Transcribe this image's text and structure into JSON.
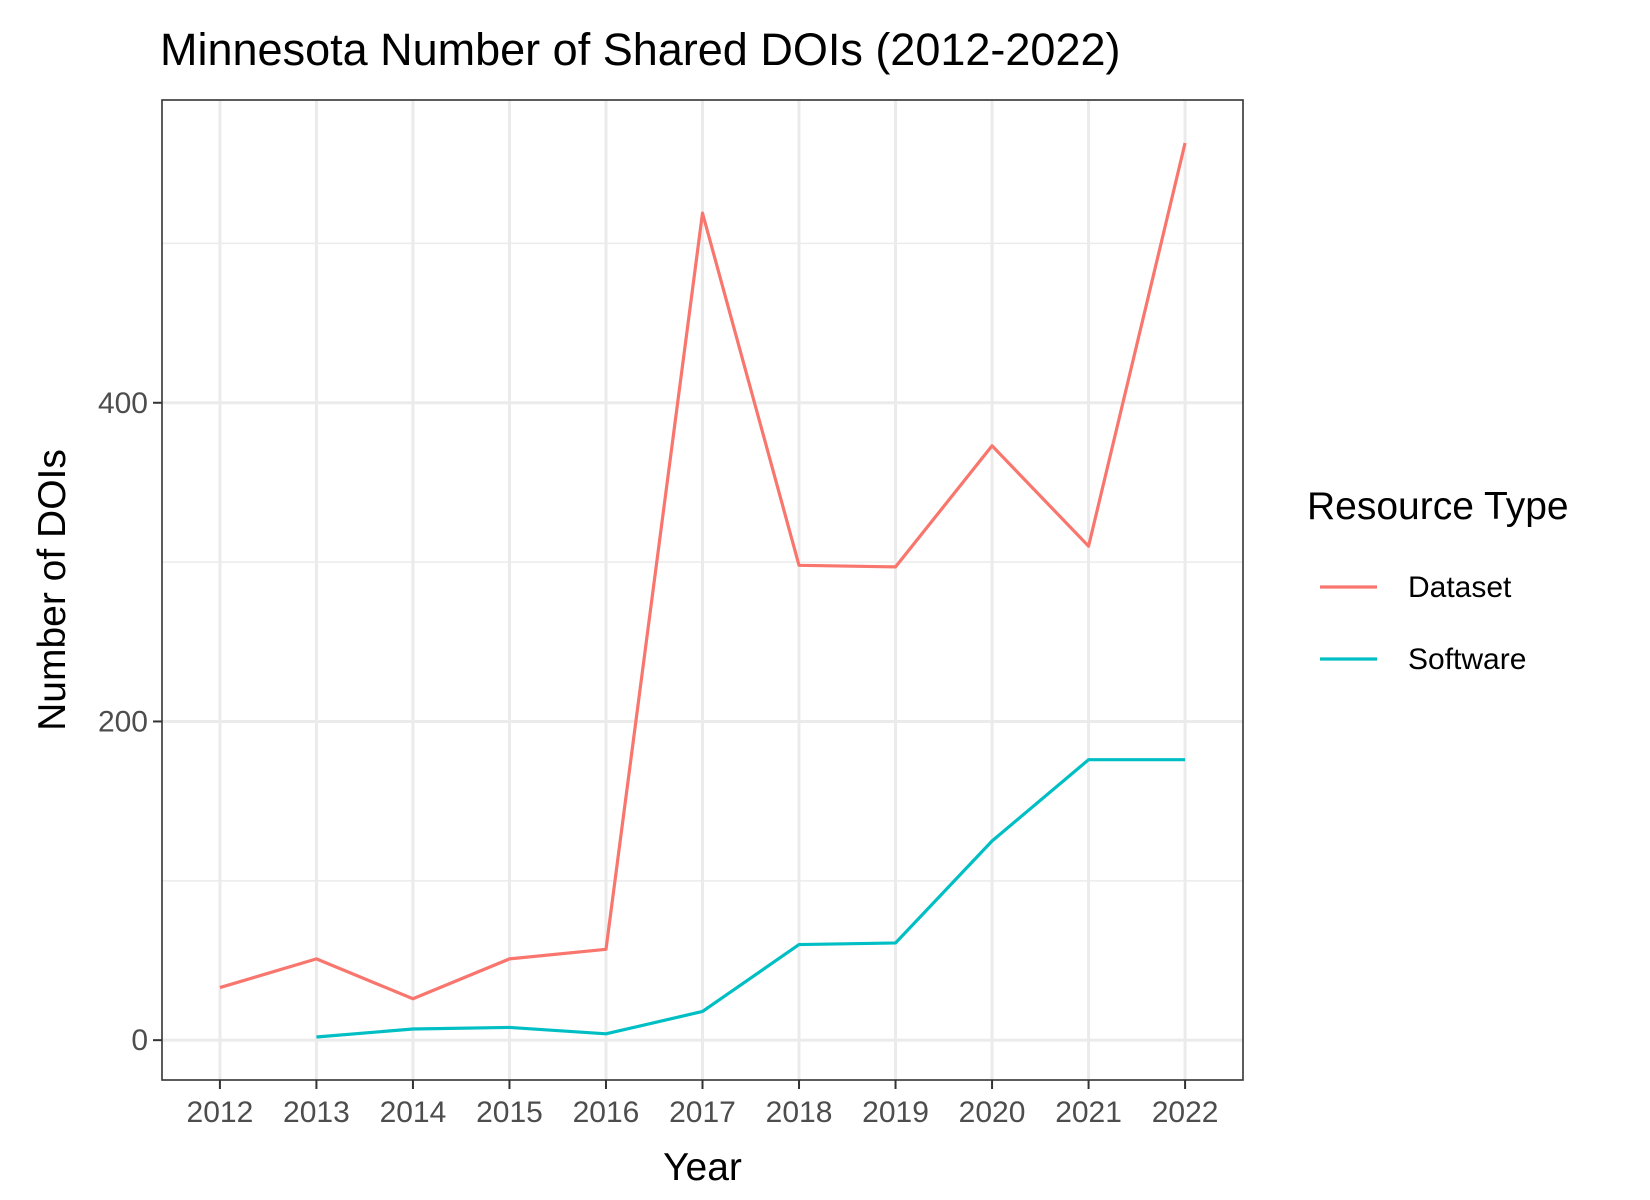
{
  "chart_data": {
    "type": "line",
    "title": "Minnesota Number of Shared DOIs (2012-2022)",
    "xlabel": "Year",
    "ylabel": "Number of DOIs",
    "x": [
      "2012",
      "2013",
      "2014",
      "2015",
      "2016",
      "2017",
      "2018",
      "2019",
      "2020",
      "2021",
      "2022"
    ],
    "xlim": [
      2011.4,
      2022.6
    ],
    "ylim": [
      -25,
      590
    ],
    "yticks": [
      {
        "value": 0,
        "label": "0"
      },
      {
        "value": 200,
        "label": "200"
      },
      {
        "value": 400,
        "label": "400"
      }
    ],
    "y_minor_gridlines": [
      100,
      300,
      500
    ],
    "grid": true,
    "legend": {
      "title": "Resource Type",
      "position": "right"
    },
    "series": [
      {
        "name": "Dataset",
        "color": "#F8766D",
        "x": [
          2012,
          2013,
          2014,
          2015,
          2016,
          2017,
          2018,
          2019,
          2020,
          2021,
          2022
        ],
        "values": [
          33,
          51,
          26,
          51,
          57,
          519,
          298,
          297,
          373,
          310,
          563
        ]
      },
      {
        "name": "Software",
        "color": "#00BFC4",
        "x": [
          2013,
          2014,
          2015,
          2016,
          2017,
          2018,
          2019,
          2020,
          2021,
          2022
        ],
        "values": [
          2,
          7,
          8,
          4,
          18,
          60,
          61,
          125,
          176,
          176
        ]
      }
    ]
  }
}
